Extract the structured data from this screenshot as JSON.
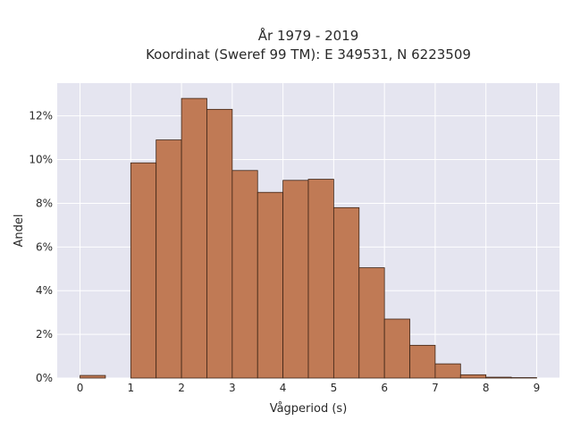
{
  "chart_data": {
    "type": "bar",
    "title_lines": [
      "År 1979 - 2019",
      "Koordinat (Sweref 99 TM): E 349531, N 6223509"
    ],
    "xlabel": "Vågperiod (s)",
    "ylabel": "Andel",
    "bin_width": 0.5,
    "bins": [
      {
        "x0": 0.0,
        "value": 0.12
      },
      {
        "x0": 1.0,
        "value": 9.85
      },
      {
        "x0": 1.5,
        "value": 10.9
      },
      {
        "x0": 2.0,
        "value": 12.8
      },
      {
        "x0": 2.5,
        "value": 12.3
      },
      {
        "x0": 3.0,
        "value": 9.5
      },
      {
        "x0": 3.5,
        "value": 8.5
      },
      {
        "x0": 4.0,
        "value": 9.05
      },
      {
        "x0": 4.5,
        "value": 9.1
      },
      {
        "x0": 5.0,
        "value": 7.8
      },
      {
        "x0": 5.5,
        "value": 5.05
      },
      {
        "x0": 6.0,
        "value": 2.7
      },
      {
        "x0": 6.5,
        "value": 1.5
      },
      {
        "x0": 7.0,
        "value": 0.65
      },
      {
        "x0": 7.5,
        "value": 0.15
      },
      {
        "x0": 8.0,
        "value": 0.04
      },
      {
        "x0": 8.5,
        "value": 0.02
      }
    ],
    "x_ticks": [
      0,
      1,
      2,
      3,
      4,
      5,
      6,
      7,
      8,
      9
    ],
    "x_tick_labels": [
      "0",
      "1",
      "2",
      "3",
      "4",
      "5",
      "6",
      "7",
      "8",
      "9"
    ],
    "y_ticks": [
      0,
      2,
      4,
      6,
      8,
      10,
      12
    ],
    "y_tick_labels": [
      "0%",
      "2%",
      "4%",
      "6%",
      "8%",
      "10%",
      "12%"
    ],
    "xlim": [
      -0.45,
      9.45
    ],
    "ylim": [
      0,
      13.5
    ],
    "grid": true,
    "colors": {
      "bar_fill": "#c07a55",
      "bar_stroke": "#3d2416",
      "plot_bg": "#e5e5f0",
      "grid": "#ffffff"
    }
  }
}
